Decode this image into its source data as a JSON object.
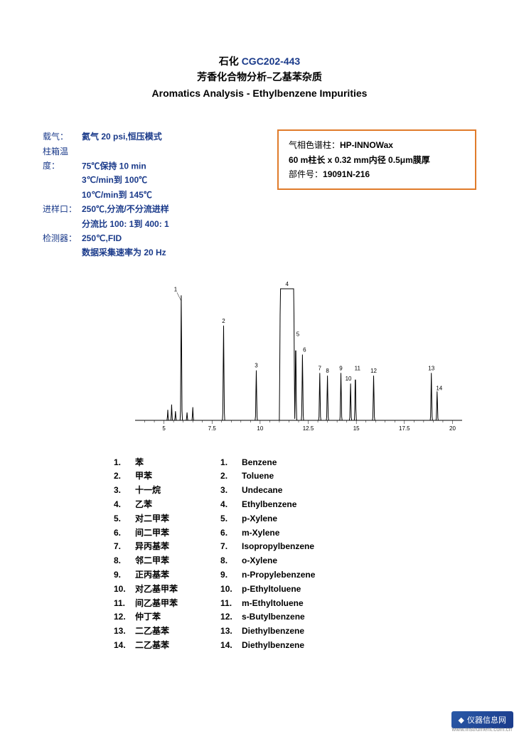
{
  "header": {
    "line1_prefix": "石化 ",
    "line1_code": "CGC202-443",
    "line2": "芳香化合物分析–乙基苯杂质",
    "line3": "Aromatics Analysis -   Ethylbenzene Impurities"
  },
  "params": {
    "carrier_label": "载气：",
    "carrier_value": "氦气  20 psi,恒压模式",
    "oven_label": "柱箱温度：",
    "oven_l1": "75℃保持  10 min",
    "oven_l2": "3℃/min到  100℃",
    "oven_l3": "10℃/min到  145℃",
    "inj_label": "进样口：",
    "inj_l1": "250℃,分流/不分流进样",
    "inj_l2": "分流比  100: 1到  400: 1",
    "det_label": "检测器：",
    "det_l1": "250℃,FID",
    "det_l2": "数据采集速率为  20 Hz"
  },
  "column_box": {
    "l1_label": "气相色谱柱：",
    "l1_val": "HP-INNOWax",
    "l2": "60 m柱长  x 0.32 mm内径  0.5μm膜厚",
    "l3_label": "部件号：",
    "l3_val": "19091N-216"
  },
  "chromatogram": {
    "x_ticks": [
      5,
      7.5,
      10,
      12.5,
      15,
      17.5,
      20
    ],
    "x_range": [
      3.5,
      20.5
    ],
    "y_range": [
      0,
      100
    ],
    "baseline_color": "#000000",
    "line_color": "#000000",
    "line_width": 1,
    "tick_fontsize": 8,
    "peak_label_fontsize": 8,
    "peaks": [
      {
        "n": 1,
        "rt": 5.9,
        "h": 95,
        "w": 0.05,
        "label_dx": -8,
        "label_dy": -6
      },
      {
        "n": 0,
        "rt": 5.2,
        "h": 8,
        "w": 0.04
      },
      {
        "n": 0,
        "rt": 5.4,
        "h": 12,
        "w": 0.04
      },
      {
        "n": 0,
        "rt": 5.6,
        "h": 7,
        "w": 0.04
      },
      {
        "n": 0,
        "rt": 6.2,
        "h": 6,
        "w": 0.04
      },
      {
        "n": 0,
        "rt": 6.5,
        "h": 10,
        "w": 0.04
      },
      {
        "n": 2,
        "rt": 8.1,
        "h": 72,
        "w": 0.05,
        "label_dx": 0,
        "label_dy": -4
      },
      {
        "n": 3,
        "rt": 9.8,
        "h": 38,
        "w": 0.05,
        "label_dx": 0,
        "label_dy": -4
      },
      {
        "n": 4,
        "rt": 11.4,
        "h": 100,
        "w": 0.35,
        "flat": true,
        "label_dx": 0,
        "label_dy": -4
      },
      {
        "n": 5,
        "rt": 11.85,
        "h": 62,
        "w": 0.05,
        "label_dx": 3,
        "label_dy": -4
      },
      {
        "n": 6,
        "rt": 12.2,
        "h": 50,
        "w": 0.05,
        "label_dx": 3,
        "label_dy": -4
      },
      {
        "n": 7,
        "rt": 13.1,
        "h": 36,
        "w": 0.05,
        "label_dx": 0,
        "label_dy": -4
      },
      {
        "n": 8,
        "rt": 13.5,
        "h": 34,
        "w": 0.05,
        "label_dx": 0,
        "label_dy": -4
      },
      {
        "n": 9,
        "rt": 14.2,
        "h": 36,
        "w": 0.05,
        "label_dx": 0,
        "label_dy": -4
      },
      {
        "n": 10,
        "rt": 14.7,
        "h": 28,
        "w": 0.05,
        "label_dx": -3,
        "label_dy": -4
      },
      {
        "n": 11,
        "rt": 14.95,
        "h": 36,
        "w": 0.05,
        "label_dx": 3,
        "label_dy": -4
      },
      {
        "n": 12,
        "rt": 15.9,
        "h": 34,
        "w": 0.05,
        "label_dx": 0,
        "label_dy": -4
      },
      {
        "n": 13,
        "rt": 18.9,
        "h": 36,
        "w": 0.05,
        "label_dx": 0,
        "label_dy": -4
      },
      {
        "n": 14,
        "rt": 19.2,
        "h": 22,
        "w": 0.05,
        "label_dx": 3,
        "label_dy": -2
      }
    ]
  },
  "compounds_cn": [
    {
      "n": "1.",
      "name": "苯"
    },
    {
      "n": "2.",
      "name": "甲苯"
    },
    {
      "n": "3.",
      "name": "十一烷"
    },
    {
      "n": "4.",
      "name": "乙苯"
    },
    {
      "n": "5.",
      "name": "对二甲苯"
    },
    {
      "n": "6.",
      "name": "间二甲苯"
    },
    {
      "n": "7.",
      "name": "异丙基苯"
    },
    {
      "n": "8.",
      "name": "邻二甲苯"
    },
    {
      "n": "9.",
      "name": "正丙基苯"
    },
    {
      "n": "10.",
      "name": "对乙基甲苯"
    },
    {
      "n": "11.",
      "name": "间乙基甲苯"
    },
    {
      "n": "12.",
      "name": "仲丁苯"
    },
    {
      "n": "13.",
      "name": "二乙基苯"
    },
    {
      "n": "14.",
      "name": "二乙基苯"
    }
  ],
  "compounds_en": [
    {
      "n": "1.",
      "name": "Benzene"
    },
    {
      "n": "2.",
      "name": "Toluene"
    },
    {
      "n": "3.",
      "name": "Undecane"
    },
    {
      "n": "4.",
      "name": "Ethylbenzene"
    },
    {
      "n": "5.",
      "name": "p-Xylene"
    },
    {
      "n": "6.",
      "name": "m-Xylene"
    },
    {
      "n": "7.",
      "name": "Isopropylbenzene"
    },
    {
      "n": "8.",
      "name": "o-Xylene"
    },
    {
      "n": "9.",
      "name": "n-Propylebenzene"
    },
    {
      "n": "10.",
      "name": "p-Ethyltoluene"
    },
    {
      "n": "11.",
      "name": "m-Ethyltoluene"
    },
    {
      "n": "12.",
      "name": "s-Butylbenzene"
    },
    {
      "n": "13.",
      "name": "Diethylbenzene"
    },
    {
      "n": "14.",
      "name": "Diethylbenzene"
    }
  ],
  "watermark": {
    "text": "仪器信息网",
    "sub": "www.instrument.com.cn"
  }
}
